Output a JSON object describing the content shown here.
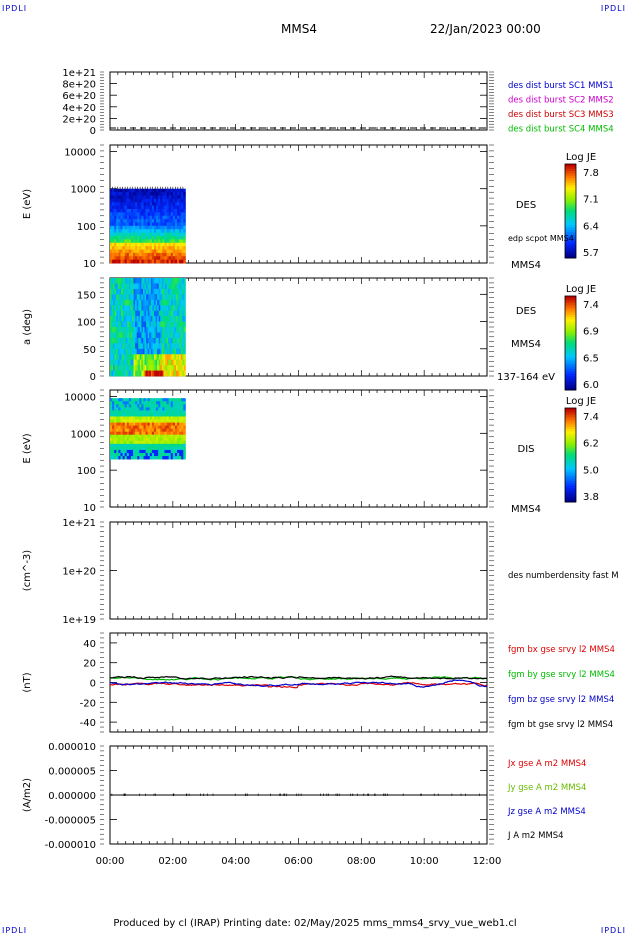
{
  "header": {
    "corner_label": "IPDLI",
    "spacecraft": "MMS4",
    "date_time": "22/Jan/2023 00:00"
  },
  "footer": {
    "text": "Produced by cl (IRAP)   Printing date: 02/May/2025   mms_mms4_srvy_vue_web1.cl"
  },
  "time_axis": {
    "ticks": [
      "00:00",
      "02:00",
      "04:00",
      "06:00",
      "08:00",
      "10:00",
      "12:00"
    ],
    "range_hours": [
      0,
      12
    ],
    "data_end_hours": 2.4
  },
  "chart_data": [
    {
      "type": "line",
      "panel": "quality",
      "ylabel": "",
      "ylim": [
        0,
        1e+21
      ],
      "y_ticks": [
        "1e+21",
        "8e+20",
        "6e+20",
        "4e+20",
        "2e+20",
        "0"
      ],
      "series": [
        {
          "name": "des dist burst SC1 MMS1",
          "color": "#0000cc"
        },
        {
          "name": "des dist burst SC2 MMS2",
          "color": "#cc00cc"
        },
        {
          "name": "des dist burst SC3 MMS3",
          "color": "#cc0000"
        },
        {
          "name": "des dist burst SC4 MMS4",
          "color": "#00bb00"
        }
      ]
    },
    {
      "type": "heatmap",
      "panel": "des_energy",
      "ylabel": "E (eV)",
      "y_scale": "log",
      "ylim": [
        10,
        15000
      ],
      "y_ticks": [
        "10000",
        "1000",
        "100",
        "10"
      ],
      "side_labels": [
        "DES",
        "edp scpot MMS4",
        "MMS4"
      ],
      "colorbar": {
        "title": "Log JE",
        "ticks": [
          "7.8",
          "7.1",
          "6.4",
          "5.7"
        ],
        "range": [
          5.7,
          7.8
        ]
      }
    },
    {
      "type": "heatmap",
      "panel": "des_pitch",
      "ylabel": "a (deg)",
      "ylim": [
        0,
        180
      ],
      "y_ticks": [
        "150",
        "100",
        "50",
        "0"
      ],
      "side_labels": [
        "DES",
        "MMS4",
        "137-164 eV"
      ],
      "colorbar": {
        "title": "Log JE",
        "ticks": [
          "7.4",
          "6.9",
          "6.5",
          "6.0"
        ],
        "range": [
          6.0,
          7.4
        ]
      }
    },
    {
      "type": "heatmap",
      "panel": "dis_energy",
      "ylabel": "E (eV)",
      "y_scale": "log",
      "ylim": [
        10,
        15000
      ],
      "y_ticks": [
        "10000",
        "1000",
        "100",
        "10"
      ],
      "side_labels": [
        "DIS",
        "MMS4"
      ],
      "colorbar": {
        "title": "Log JE",
        "ticks": [
          "7.4",
          "6.2",
          "5.0",
          "3.8"
        ],
        "range": [
          3.8,
          7.4
        ]
      }
    },
    {
      "type": "line",
      "panel": "density",
      "ylabel": "(cm^-3)",
      "y_scale": "log",
      "ylim": [
        1e+19,
        1e+21
      ],
      "y_ticks": [
        "1e+21",
        "1e+20",
        "1e+19"
      ],
      "series": [
        {
          "name": "des numberdensity fast M",
          "color": "#000000"
        }
      ]
    },
    {
      "type": "line",
      "panel": "fgm",
      "ylabel": "(nT)",
      "ylim": [
        -50,
        50
      ],
      "y_ticks": [
        "40",
        "20",
        "0",
        "-20",
        "-40"
      ],
      "series": [
        {
          "name": "fgm bx gse srvy l2 MMS4",
          "color": "#dd0000"
        },
        {
          "name": "fgm by gse srvy l2 MMS4",
          "color": "#00bb00"
        },
        {
          "name": "fgm bz gse srvy l2 MMS4",
          "color": "#0000cc"
        },
        {
          "name": "fgm bt gse srvy l2 MMS4",
          "color": "#000000"
        }
      ]
    },
    {
      "type": "line",
      "panel": "current",
      "ylabel": "(A/m2)",
      "ylim": [
        -1e-05,
        1e-05
      ],
      "y_ticks": [
        "0.000010",
        "0.000005",
        "0.000000",
        "-0.000005",
        "-0.000010"
      ],
      "series": [
        {
          "name": "Jx gse A m2 MMS4",
          "color": "#dd0000"
        },
        {
          "name": "Jy gse A m2 MMS4",
          "color": "#66bb00"
        },
        {
          "name": "Jz gse A m2 MMS4",
          "color": "#0000cc"
        },
        {
          "name": "J A m2 MMS4",
          "color": "#000000"
        }
      ]
    }
  ]
}
